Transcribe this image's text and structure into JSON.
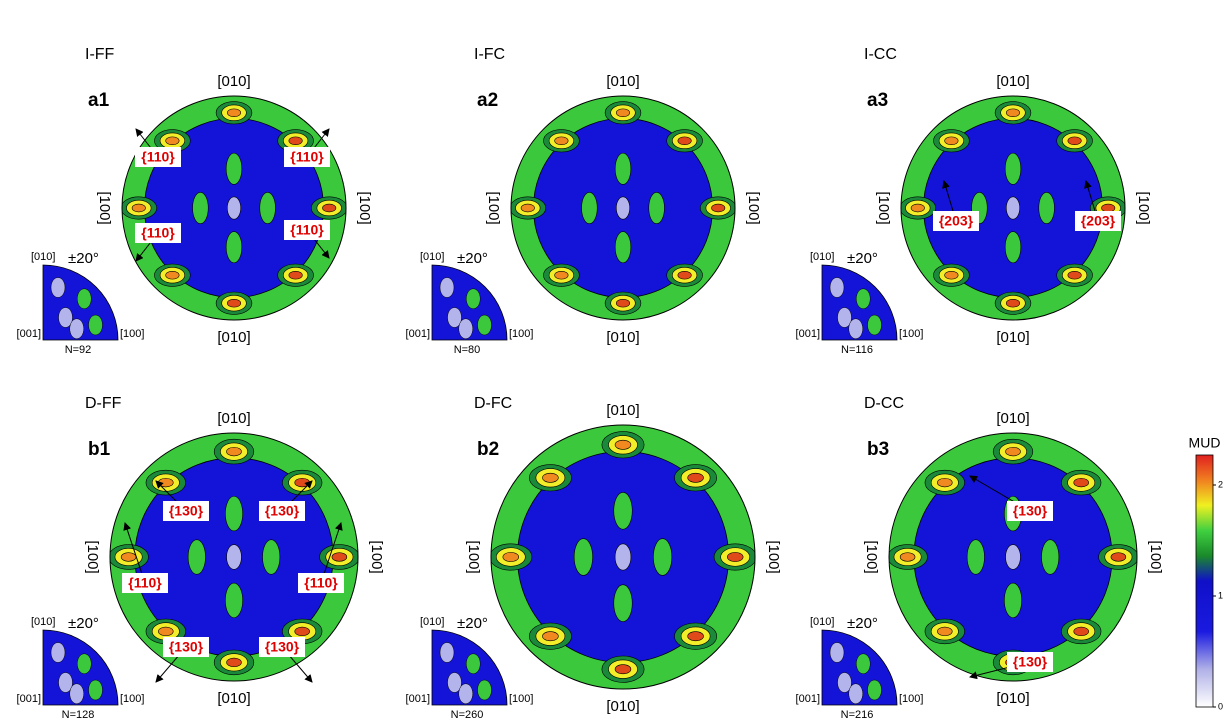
{
  "panels": [
    {
      "condition": "I-FF",
      "label": "a1",
      "top": "[010]",
      "bottom": "[010]",
      "left": "[100]",
      "right": "[100]",
      "inset": {
        "top": "[010]",
        "range": "±20°",
        "left": "[001]",
        "right": "[100]",
        "count": "N=92"
      },
      "annotations": [
        "{110}",
        "{110}",
        "{110}",
        "{110}"
      ]
    },
    {
      "condition": "I-FC",
      "label": "a2",
      "top": "[010]",
      "bottom": "[010]",
      "left": "[100]",
      "right": "[100]",
      "inset": {
        "top": "[010]",
        "range": "±20°",
        "left": "[001]",
        "right": "[100]",
        "count": "N=80"
      },
      "annotations": []
    },
    {
      "condition": "I-CC",
      "label": "a3",
      "top": "[010]",
      "bottom": "[010]",
      "left": "[100]",
      "right": "[100]",
      "inset": {
        "top": "[010]",
        "range": "±20°",
        "left": "[001]",
        "right": "[100]",
        "count": "N=116"
      },
      "annotations": [
        "{203}",
        "{203}"
      ]
    },
    {
      "condition": "D-FF",
      "label": "b1",
      "top": "[010]",
      "bottom": "[010]",
      "left": "[100]",
      "right": "[100]",
      "inset": {
        "top": "[010]",
        "range": "±20°",
        "left": "[001]",
        "right": "[100]",
        "count": "N=128"
      },
      "annotations": [
        "{130}",
        "{130}",
        "{110}",
        "{110}",
        "{130}",
        "{130}"
      ]
    },
    {
      "condition": "D-FC",
      "label": "b2",
      "top": "[010]",
      "bottom": "[010]",
      "left": "[100]",
      "right": "[100]",
      "inset": {
        "top": "[010]",
        "range": "±20°",
        "left": "[001]",
        "right": "[100]",
        "count": "N=260"
      },
      "annotations": []
    },
    {
      "condition": "D-CC",
      "label": "b3",
      "top": "[010]",
      "bottom": "[010]",
      "left": "[100]",
      "right": "[100]",
      "inset": {
        "top": "[010]",
        "range": "±20°",
        "left": "[001]",
        "right": "[100]",
        "count": "N=216"
      },
      "annotations": [
        "{130}",
        "{130}"
      ]
    }
  ],
  "colorbar": {
    "title": "MUD",
    "ticks": [
      0,
      1,
      2
    ]
  }
}
